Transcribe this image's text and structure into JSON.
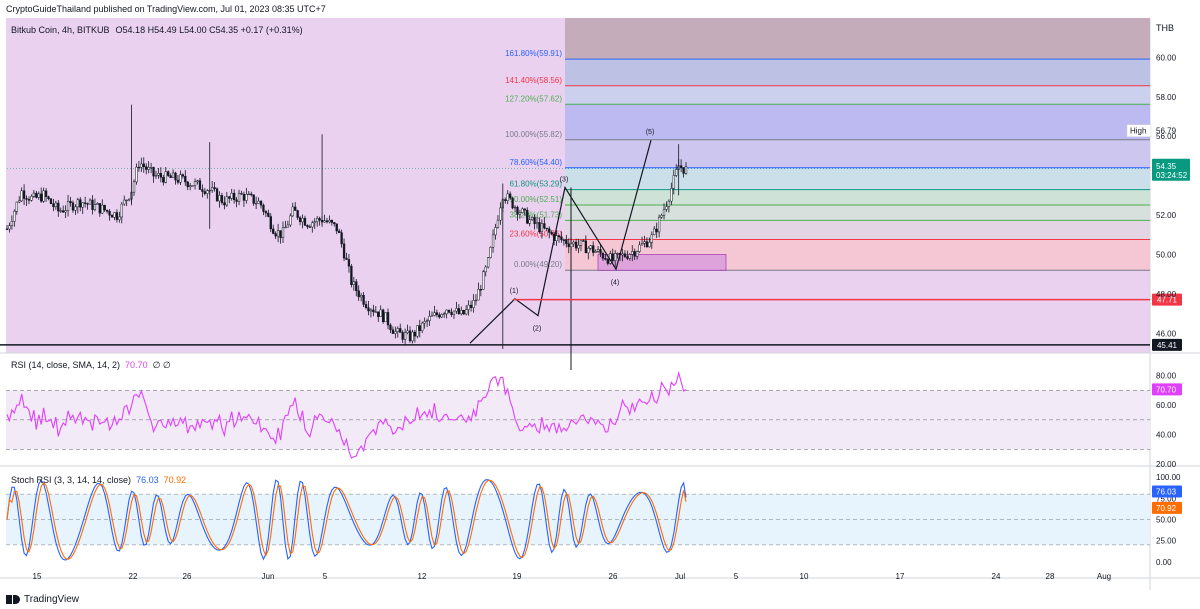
{
  "header": {
    "published": "CryptoGuideThailand published on TradingView.com, Jul 01, 2023 08:35 UTC+7"
  },
  "footer": {
    "brand": "TradingView"
  },
  "legend": {
    "symbol": "Bitkub Coin, 4h, BITKUB",
    "ohlc": "O54.18 H54.49 L54.00 C54.35 +0.17 (+0.31%)",
    "rsi": "RSI (14, close, SMA, 14, 2)",
    "rsi_value": "70.70",
    "rsi_extra": "∅ ∅",
    "stoch": "Stoch RSI (3, 3, 14, 14, close)",
    "stoch_k": "76.03",
    "stoch_d": "70.92"
  },
  "colors": {
    "up": "#131722",
    "down": "#131722",
    "rsi": "#e040fb",
    "stoch_k": "#2962ff",
    "stoch_d": "#ff6d00",
    "current": "#089981",
    "support": "#f23645",
    "background_zone": "#ead1f0"
  },
  "chart_data": [
    {
      "type": "candlestick",
      "title": "Bitkub Coin, 4h, BITKUB",
      "currency": "THB",
      "y_ticks": [
        "46.00",
        "48.00",
        "50.00",
        "52.00",
        "54.00",
        "56.00",
        "58.00",
        "60.00"
      ],
      "ylim": [
        45,
        62
      ],
      "x_ticks": [
        "15",
        "22",
        "26",
        "Jun",
        "5",
        "12",
        "19",
        "26",
        "Jul",
        "5",
        "10",
        "17",
        "24",
        "28",
        "Aug"
      ],
      "current_price": "54.35",
      "countdown": "03:24:52",
      "high_label": "High",
      "high_value": "56.79",
      "levels": [
        {
          "label": "45.41",
          "value": 45.41,
          "color": "#131722"
        },
        {
          "label": "47.71",
          "value": 47.71,
          "color": "#f23645"
        }
      ],
      "fibonacci": [
        {
          "label": "0.00%(49.20)",
          "value": 49.2,
          "color": "#787b86"
        },
        {
          "label": "23.60%(50.76)",
          "value": 50.76,
          "color": "#f23645"
        },
        {
          "label": "38.20%(51.73)",
          "value": 51.73,
          "color": "#4caf50"
        },
        {
          "label": "50.00%(52.51)",
          "value": 52.51,
          "color": "#4caf50"
        },
        {
          "label": "61.80%(53.29)",
          "value": 53.29,
          "color": "#089981"
        },
        {
          "label": "78.60%(54.40)",
          "value": 54.4,
          "color": "#2962ff"
        },
        {
          "label": "100.00%(55.82)",
          "value": 55.82,
          "color": "#787b86"
        },
        {
          "label": "127.20%(57.62)",
          "value": 57.62,
          "color": "#4caf50"
        },
        {
          "label": "141.40%(58.56)",
          "value": 58.56,
          "color": "#f23645"
        },
        {
          "label": "161.80%(59.91)",
          "value": 59.91,
          "color": "#2962ff"
        }
      ],
      "waves": [
        {
          "label": "(1)",
          "price": 47.8
        },
        {
          "label": "(2)",
          "price": 46.5
        },
        {
          "label": "(3)",
          "price": 53.4
        },
        {
          "label": "(4)",
          "price": 49.2
        },
        {
          "label": "(5)",
          "price": 55.8
        }
      ]
    },
    {
      "type": "line",
      "title": "RSI (14, close, SMA, 14, 2)",
      "y_ticks": [
        "20.00",
        "40.00",
        "60.00",
        "80.00"
      ],
      "ylim": [
        20,
        92
      ],
      "bands": [
        30,
        50,
        70
      ],
      "last_value": 70.7
    },
    {
      "type": "line",
      "title": "Stoch RSI (3, 3, 14, 14, close)",
      "y_ticks": [
        "0.00",
        "25.00",
        "50.00",
        "75.00",
        "100.00"
      ],
      "ylim": [
        -5,
        105
      ],
      "bands": [
        20,
        50,
        80
      ],
      "series": [
        {
          "name": "K",
          "last_value": 76.03
        },
        {
          "name": "D",
          "last_value": 70.92
        }
      ]
    }
  ]
}
